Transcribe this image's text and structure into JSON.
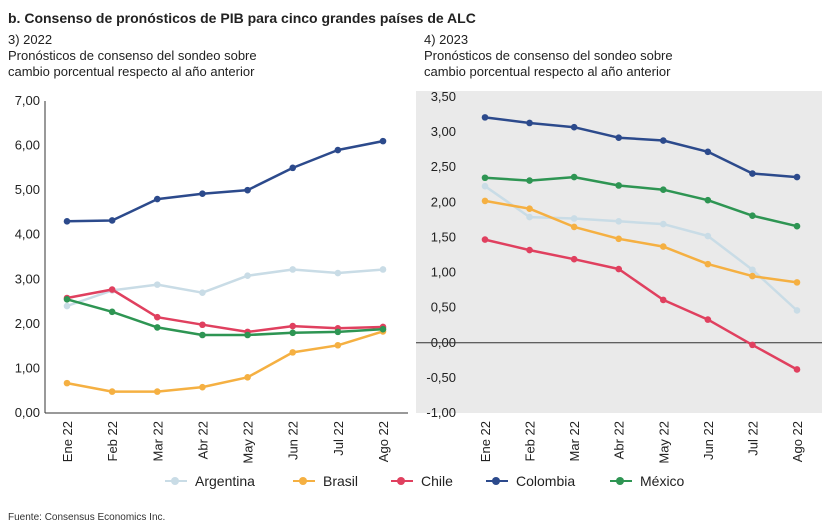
{
  "title": "b. Consenso de pronósticos de PIB para cinco grandes países de ALC",
  "source": "Fuente: Consensus Economics Inc.",
  "panels": [
    {
      "label": "3) 2022",
      "subtitle_line1": "Pronósticos de consenso del sondeo sobre",
      "subtitle_line2": "cambio porcentual respecto al año anterior"
    },
    {
      "label": "4) 2023",
      "subtitle_line1": "Pronósticos de consenso del sondeo sobre",
      "subtitle_line2": "cambio porcentual respecto al año anterior"
    }
  ],
  "legend": [
    {
      "name": "Argentina",
      "color": "#c9dce6"
    },
    {
      "name": "Brasil",
      "color": "#f5b042"
    },
    {
      "name": "Chile",
      "color": "#e0405f"
    },
    {
      "name": "Colombia",
      "color": "#2c4a8c"
    },
    {
      "name": "México",
      "color": "#2e9553"
    }
  ],
  "chart_data": [
    {
      "type": "line",
      "title": "3) 2022",
      "categories": [
        "Ene 22",
        "Feb 22",
        "Mar 22",
        "Abr 22",
        "May 22",
        "Jun 22",
        "Jul 22",
        "Ago 22"
      ],
      "ylim": [
        0,
        7
      ],
      "yticks": [
        "0,00",
        "1,00",
        "2,00",
        "3,00",
        "4,00",
        "5,00",
        "6,00",
        "7,00"
      ],
      "grid": false,
      "series": [
        {
          "name": "Argentina",
          "color": "#c9dce6",
          "values": [
            2.4,
            2.75,
            2.88,
            2.7,
            3.08,
            3.22,
            3.14,
            3.22
          ]
        },
        {
          "name": "Brasil",
          "color": "#f5b042",
          "values": [
            0.67,
            0.48,
            0.48,
            0.58,
            0.8,
            1.36,
            1.52,
            1.83
          ]
        },
        {
          "name": "Chile",
          "color": "#e0405f",
          "values": [
            2.58,
            2.77,
            2.15,
            1.98,
            1.82,
            1.95,
            1.9,
            1.93
          ]
        },
        {
          "name": "Colombia",
          "color": "#2c4a8c",
          "values": [
            4.3,
            4.32,
            4.8,
            4.92,
            5.0,
            5.5,
            5.9,
            6.1
          ]
        },
        {
          "name": "México",
          "color": "#2e9553",
          "values": [
            2.55,
            2.27,
            1.92,
            1.75,
            1.75,
            1.8,
            1.82,
            1.88
          ]
        }
      ]
    },
    {
      "type": "line",
      "title": "4) 2023",
      "categories": [
        "Ene 22",
        "Feb 22",
        "Mar 22",
        "Abr 22",
        "May 22",
        "Jun 22",
        "Jul 22",
        "Ago 22"
      ],
      "ylim": [
        -1,
        3.5
      ],
      "yticks": [
        "-1,00",
        "-0,50",
        "0,00",
        "0,50",
        "1,00",
        "1,50",
        "2,00",
        "2,50",
        "3,00",
        "3,50"
      ],
      "grid": false,
      "zero_line": true,
      "background": "#eaeaea",
      "series": [
        {
          "name": "Argentina",
          "color": "#c9dce6",
          "values": [
            2.23,
            1.79,
            1.77,
            1.73,
            1.69,
            1.52,
            1.04,
            0.46
          ]
        },
        {
          "name": "Brasil",
          "color": "#f5b042",
          "values": [
            2.02,
            1.91,
            1.65,
            1.48,
            1.37,
            1.12,
            0.95,
            0.86
          ]
        },
        {
          "name": "Chile",
          "color": "#e0405f",
          "values": [
            1.47,
            1.32,
            1.19,
            1.05,
            0.61,
            0.33,
            -0.03,
            -0.38
          ]
        },
        {
          "name": "Colombia",
          "color": "#2c4a8c",
          "values": [
            3.21,
            3.13,
            3.07,
            2.92,
            2.88,
            2.72,
            2.41,
            2.36
          ]
        },
        {
          "name": "México",
          "color": "#2e9553",
          "values": [
            2.35,
            2.31,
            2.36,
            2.24,
            2.18,
            2.03,
            1.81,
            1.66
          ]
        }
      ]
    }
  ]
}
